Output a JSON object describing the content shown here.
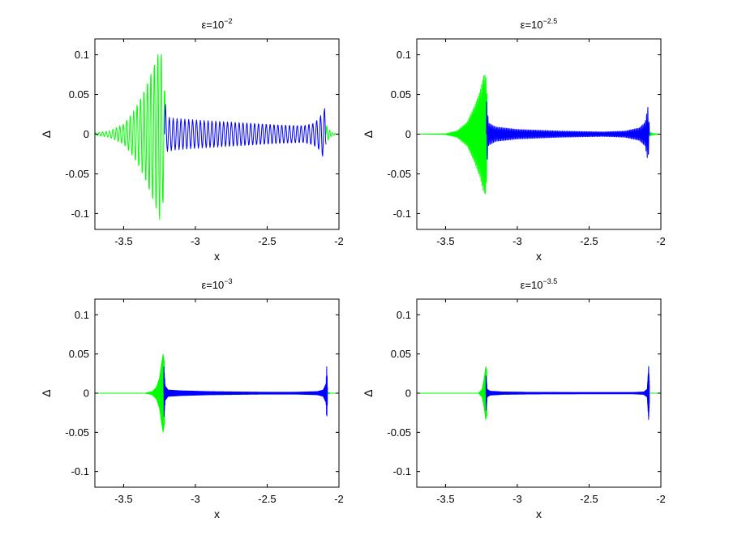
{
  "chart_data": [
    {
      "type": "line",
      "title": {
        "base": "ε=10",
        "exp": "−2"
      },
      "xlabel": "x",
      "ylabel": "Δ",
      "xlim": [
        -3.7,
        -2.0
      ],
      "ylim": [
        -0.12,
        0.12
      ],
      "xticks": [
        -3.5,
        -3,
        -2.5,
        -2
      ],
      "xtick_labels": [
        "-3.5",
        "-3",
        "-2.5",
        "-2"
      ],
      "yticks": [
        0.1,
        0.05,
        0,
        -0.05,
        -0.1
      ],
      "ytick_labels": [
        "0.1",
        "0.05",
        "0",
        "-0.05",
        "-0.1"
      ],
      "grid": false,
      "series": [
        {
          "color": "#00ff00",
          "segments": [
            {
              "x": [
                -3.7,
                -3.6,
                -3.5,
                -3.45,
                -3.4,
                -3.35,
                -3.3,
                -3.27,
                -3.245,
                -3.225,
                -3.215,
                -3.21
              ],
              "amp": [
                0.0015,
                0.004,
                0.013,
                0.025,
                0.04,
                0.06,
                0.085,
                0.1,
                0.115,
                0.09,
                0.06,
                0.05
              ],
              "period": 0.024
            },
            {
              "x": [
                -2.09,
                -2.07,
                -2.05,
                -2.0
              ],
              "amp": [
                0.012,
                0.006,
                0.002,
                0.0
              ],
              "period": 0.02
            }
          ]
        },
        {
          "color": "#0000ff",
          "segments": [
            {
              "x": [
                -3.215,
                -3.2,
                -3.15,
                -3.0,
                -2.8,
                -2.6,
                -2.4,
                -2.25,
                -2.18,
                -2.14,
                -2.11,
                -2.095,
                -2.09
              ],
              "amp": [
                0.05,
                0.022,
                0.02,
                0.018,
                0.016,
                0.014,
                0.012,
                0.011,
                0.014,
                0.02,
                0.03,
                0.035,
                0.015
              ],
              "period": 0.027
            }
          ]
        }
      ]
    },
    {
      "type": "line",
      "title": {
        "base": "ε=10",
        "exp": "−2.5"
      },
      "xlabel": "x",
      "ylabel": "Δ",
      "xlim": [
        -3.7,
        -2.0
      ],
      "ylim": [
        -0.12,
        0.12
      ],
      "xticks": [
        -3.5,
        -3,
        -2.5,
        -2
      ],
      "xtick_labels": [
        "-3.5",
        "-3",
        "-2.5",
        "-2"
      ],
      "yticks": [
        0.1,
        0.05,
        0,
        -0.05,
        -0.1
      ],
      "ytick_labels": [
        "0.1",
        "0.05",
        "0",
        "-0.05",
        "-0.1"
      ],
      "grid": false,
      "series": [
        {
          "color": "#00ff00",
          "segments": [
            {
              "x": [
                -3.7,
                -3.5,
                -3.42,
                -3.35,
                -3.3,
                -3.26,
                -3.235,
                -3.22,
                -3.21
              ],
              "amp": [
                0.0,
                0.0005,
                0.004,
                0.015,
                0.035,
                0.055,
                0.075,
                0.078,
                0.05
              ],
              "period": 0.0075
            },
            {
              "x": [
                -2.08,
                -2.06,
                -2.0
              ],
              "amp": [
                0.003,
                0.001,
                0.0
              ],
              "period": 0.007
            }
          ]
        },
        {
          "color": "#0000ff",
          "segments": [
            {
              "x": [
                -3.215,
                -3.2,
                -3.15,
                -3.0,
                -2.7,
                -2.4,
                -2.25,
                -2.15,
                -2.11,
                -2.09,
                -2.08
              ],
              "amp": [
                0.045,
                0.014,
                0.009,
                0.006,
                0.004,
                0.003,
                0.004,
                0.008,
                0.015,
                0.035,
                0.01
              ],
              "period": 0.0085
            }
          ]
        }
      ]
    },
    {
      "type": "line",
      "title": {
        "base": "ε=10",
        "exp": "−3"
      },
      "xlabel": "x",
      "ylabel": "Δ",
      "xlim": [
        -3.7,
        -2.0
      ],
      "ylim": [
        -0.12,
        0.12
      ],
      "xticks": [
        -3.5,
        -3,
        -2.5,
        -2
      ],
      "xtick_labels": [
        "-3.5",
        "-3",
        "-2.5",
        "-2"
      ],
      "yticks": [
        0.1,
        0.05,
        0,
        -0.05,
        -0.1
      ],
      "ytick_labels": [
        "0.1",
        "0.05",
        "0",
        "-0.05",
        "-0.1"
      ],
      "grid": false,
      "series": [
        {
          "color": "#00ff00",
          "segments": [
            {
              "x": [
                -3.7,
                -3.35,
                -3.3,
                -3.27,
                -3.25,
                -3.235,
                -3.225,
                -3.215
              ],
              "amp": [
                0.0,
                0.0,
                0.002,
                0.008,
                0.02,
                0.04,
                0.052,
                0.04
              ],
              "period": 0.0024
            },
            {
              "x": [
                -2.075,
                -2.06,
                -2.0
              ],
              "amp": [
                0.001,
                0.0,
                0.0
              ],
              "period": 0.003
            }
          ]
        },
        {
          "color": "#0000ff",
          "segments": [
            {
              "x": [
                -3.22,
                -3.21,
                -3.19,
                -3.1,
                -2.9,
                -2.5,
                -2.3,
                -2.15,
                -2.11,
                -2.09,
                -2.085,
                -2.08
              ],
              "amp": [
                0.035,
                0.009,
                0.004,
                0.003,
                0.002,
                0.0012,
                0.0012,
                0.002,
                0.004,
                0.012,
                0.035,
                0.01
              ],
              "period": 0.0028
            }
          ]
        }
      ]
    },
    {
      "type": "line",
      "title": {
        "base": "ε=10",
        "exp": "−3.5"
      },
      "xlabel": "x",
      "ylabel": "Δ",
      "xlim": [
        -3.7,
        -2.0
      ],
      "ylim": [
        -0.12,
        0.12
      ],
      "xticks": [
        -3.5,
        -3,
        -2.5,
        -2
      ],
      "xtick_labels": [
        "-3.5",
        "-3",
        "-2.5",
        "-2"
      ],
      "yticks": [
        0.1,
        0.05,
        0,
        -0.05,
        -0.1
      ],
      "ytick_labels": [
        "0.1",
        "0.05",
        "0",
        "-0.05",
        "-0.1"
      ],
      "grid": false,
      "series": [
        {
          "color": "#00ff00",
          "segments": [
            {
              "x": [
                -3.7,
                -3.27,
                -3.245,
                -3.23,
                -3.22,
                -3.213
              ],
              "amp": [
                0.0,
                0.0,
                0.005,
                0.02,
                0.035,
                0.03
              ],
              "period": 0.0012
            },
            {
              "x": [
                -2.075,
                -2.0
              ],
              "amp": [
                0.0,
                0.0
              ],
              "period": 0.002
            }
          ]
        },
        {
          "color": "#0000ff",
          "segments": [
            {
              "x": [
                -3.218,
                -3.21,
                -3.19,
                -3.1,
                -2.9,
                -2.5,
                -2.2,
                -2.12,
                -2.095,
                -2.085,
                -2.08
              ],
              "amp": [
                0.025,
                0.005,
                0.0025,
                0.0015,
                0.001,
                0.0008,
                0.0008,
                0.0015,
                0.005,
                0.035,
                0.01
              ],
              "period": 0.0012
            }
          ]
        }
      ]
    }
  ]
}
